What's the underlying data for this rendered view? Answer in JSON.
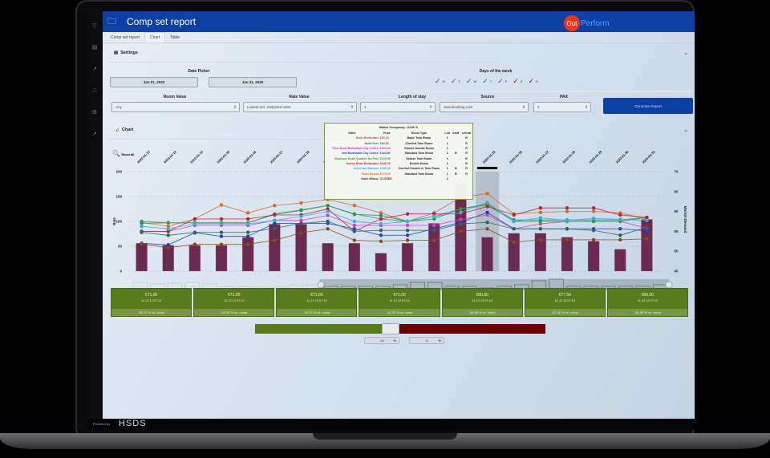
{
  "app": {
    "title": "Comp set report",
    "logo_out": "Out",
    "logo_perform": "Perform",
    "powered_by": "Powered by",
    "footer_brand": "HSDS"
  },
  "tabs": [
    {
      "label": "Comp set report",
      "active": false
    },
    {
      "label": "Chart",
      "active": true
    },
    {
      "label": "Table",
      "active": false
    }
  ],
  "rail_icons": [
    "shield-icon",
    "inbox-icon",
    "trend-icon",
    "chat-icon",
    "gear-icon",
    "wrench-icon"
  ],
  "settings": {
    "header": "Settings",
    "date_picker_label": "Date Picker",
    "date_from": "Jan 01, 2020",
    "date_to": "Jan 31, 2020",
    "days_label": "Days of the week",
    "days": [
      {
        "label": "M",
        "color": "#1a5fd0"
      },
      {
        "label": "T",
        "color": "#1a5fd0"
      },
      {
        "label": "W",
        "color": "#1a5fd0"
      },
      {
        "label": "T",
        "color": "#1a5fd0"
      },
      {
        "label": "F",
        "color": "#1a5fd0"
      },
      {
        "label": "S",
        "color": "#b01020"
      },
      {
        "label": "S",
        "color": "#b01020"
      }
    ],
    "room_value_label": "Room Value",
    "room_value": "Any",
    "rate_value_label": "Rate Value",
    "rate_value": "Lowest incl. restricted rates",
    "los_label": "Length of stay",
    "los": "1",
    "source_label": "Source",
    "source": "www.booking.com",
    "pax_label": "PAX",
    "pax": "2",
    "generate_label": "Generate Report"
  },
  "chart_section": {
    "header": "Chart",
    "show_all": "Show all"
  },
  "chart_data": {
    "type": "bar+line",
    "title": "",
    "xlabel": "",
    "ylabel": "Rate",
    "y2label": "Market Demand",
    "ylim": [
      0,
      200
    ],
    "y2lim": [
      45,
      70
    ],
    "yticks": [
      0,
      50,
      100,
      150,
      200
    ],
    "y2ticks": [
      45,
      50,
      55,
      60,
      65,
      70
    ],
    "categories": [
      "2020-01-12",
      "2020-01-13",
      "2020-01-14",
      "2020-01-15",
      "2020-01-16",
      "2020-01-17",
      "2020-01-18",
      "2020-01-19",
      "2020-01-20",
      "2020-01-21",
      "2020-01-22",
      "2020-01-23",
      "2020-01-24",
      "2020-01-25",
      "2020-01-26",
      "2020-01-27",
      "2020-01-28",
      "2020-01-29",
      "2020-01-30",
      "2020-01-31"
    ],
    "bars": {
      "name": "Market Demand",
      "color": "#6b2a50",
      "values": [
        52,
        51.5,
        51.5,
        51.5,
        53.5,
        56.8,
        56.8,
        52,
        52,
        49.5,
        52,
        57,
        67,
        53.5,
        54.5,
        54.5,
        53.5,
        52.5,
        50.5,
        58
      ]
    },
    "highlight_index": 13,
    "series": [
      {
        "name": "Hotel Rotterdam",
        "color": "#d46a30",
        "values": [
          98,
          90,
          105,
          133,
          117,
          132,
          137,
          144,
          132,
          117,
          100,
          117,
          148,
          156,
          115,
          118,
          120,
          120,
          117,
          105
        ]
      },
      {
        "name": "Hotel Port",
        "color": "#2a8a6a",
        "values": [
          96,
          97,
          97,
          97,
          97,
          114,
          122,
          132,
          114,
          112,
          100,
          110,
          125,
          135,
          103,
          103,
          103,
          103,
          103,
          108
        ]
      },
      {
        "name": "Thon Hotel Rotterdam City Centre",
        "color": "#d040d0",
        "values": [
          80,
          80,
          92,
          92,
          92,
          102,
          102,
          112,
          92,
          92,
          92,
          92,
          104,
          113,
          85,
          95,
          100,
          100,
          100,
          86
        ]
      },
      {
        "name": "Ibis Rotterdam City Centre",
        "color": "#2040c0",
        "values": [
          56,
          53,
          77,
          70,
          70,
          96,
          96,
          96,
          85,
          72,
          72,
          85,
          98,
          118,
          85,
          85,
          85,
          85,
          85,
          81
        ]
      },
      {
        "name": "Boutique Hotel Quartier Du Port",
        "color": "#3a9a3a",
        "values": [
          100,
          97,
          97,
          97,
          97,
          115,
          123,
          132,
          115,
          105,
          100,
          105,
          125,
          133,
          100,
          100,
          100,
          100,
          100,
          108
        ]
      },
      {
        "name": "Sonny Hotel Rotterdam",
        "color": "#c02030",
        "values": [
          80,
          80,
          105,
          105,
          105,
          113,
          113,
          125,
          80,
          105,
          115,
          115,
          115,
          130,
          113,
          127,
          127,
          127,
          113,
          108
        ]
      },
      {
        "name": "Hotel Van Walsum",
        "color": "#30b0e0",
        "values": [
          90,
          85,
          95,
          95,
          95,
          102,
          110,
          120,
          100,
          95,
          100,
          110,
          118,
          138,
          100,
          107,
          102,
          106,
          104,
          102
        ]
      },
      {
        "name": "Hotel Emma",
        "color": "#8a4a20",
        "values": [
          55,
          47,
          54,
          54,
          54,
          62,
          77,
          85,
          62,
          60,
          62,
          62,
          80,
          85,
          58,
          63,
          63,
          63,
          63,
          65
        ]
      },
      {
        "name": "Hotel Milano",
        "color": "#2a6a5a",
        "values": [
          78,
          72,
          78,
          78,
          78,
          86,
          96,
          100,
          80,
          82,
          82,
          82,
          95,
          98,
          85,
          85,
          85,
          82,
          72,
          88
        ]
      }
    ],
    "grid": true,
    "legend_position": "none"
  },
  "tooltip": {
    "title": "Market Occupancy : 64.86 %",
    "columns": [
      "Hotel",
      "Price",
      "Room Type",
      "LoS",
      "brkft",
      "refund"
    ],
    "rows": [
      {
        "hotel": "Hotel Rotterdam",
        "price": "€93,00",
        "room": "Basic Twin Room",
        "los": "1",
        "brkft": "",
        "refund": "R",
        "color": "#c0502a"
      },
      {
        "hotel": "Hotel Port",
        "price": "€94,00",
        "room": "Comfort Twin Room",
        "los": "1",
        "brkft": "",
        "refund": "R",
        "color": "#2a7a6a"
      },
      {
        "hotel": "Thon Hotel Rotterdam City Centre",
        "price": "€104,00",
        "room": "Classic Double Room",
        "los": "1",
        "brkft": "",
        "refund": "R",
        "color": "#d030d0"
      },
      {
        "hotel": "Ibis Rotterdam City Centre",
        "price": "€116,50",
        "room": "Standard Twin Room",
        "los": "2",
        "brkft": "B",
        "refund": "R",
        "color": "#2040c0"
      },
      {
        "hotel": "Boutique Hotel Quartier Du Port",
        "price": "€125,00",
        "room": "Deluxe Twin Room",
        "los": "1",
        "brkft": "",
        "refund": "R",
        "color": "#3a9a3a"
      },
      {
        "hotel": "Sonny Hotel Rotterdam",
        "price": "€145,00",
        "room": "Double Room",
        "los": "1",
        "brkft": "",
        "refund": "R",
        "color": "#d02040"
      },
      {
        "hotel": "Hotel Van Walsum",
        "price": "€145,50",
        "room": "Comfort Double or Twin Room",
        "los": "1",
        "brkft": "B",
        "refund": "R",
        "color": "#30a8e0"
      },
      {
        "hotel": "Hotel Emma",
        "price": "€179,00",
        "room": "Standard Twin Room",
        "los": "1",
        "brkft": "B",
        "refund": "R",
        "color": "#e06a20"
      },
      {
        "hotel": "Hotel Milano",
        "price": "CLOSED",
        "room": "",
        "los": "3",
        "brkft": "",
        "refund": "",
        "color": "#801020"
      }
    ]
  },
  "cards": [
    {
      "price": "€71,00",
      "time": "11-13 12:07:13",
      "pct": "-36.21 % vs. comp"
    },
    {
      "price": "€71,00",
      "time": "11-13 12:07:13",
      "pct": "-42.25 % vs. comp"
    },
    {
      "price": "€71,00",
      "time": "11-13 12:07:13",
      "pct": "-42.25 % vs. comp"
    },
    {
      "price": "€71,00",
      "time": "11-13 12:07:13",
      "pct": "-42.25 % vs. comp"
    },
    {
      "price": "€80,00",
      "time": "11-13 12:07:13",
      "pct": "-16.88 % vs. comp"
    },
    {
      "price": "€77,50",
      "time": "11-13 12:07:13",
      "pct": "-37.42 % vs. comp"
    },
    {
      "price": "€66,00",
      "time": "11-13 12:07:13",
      "pct": "-31.06 % vs. comp"
    }
  ],
  "threshold": {
    "low_value": "-10",
    "high_value": "-5",
    "unit": "%",
    "low_color": "#5a7a1a",
    "high_color": "#6a0000"
  },
  "colors": {
    "brand": "#0d3fa5",
    "accent": "#e8391d"
  }
}
